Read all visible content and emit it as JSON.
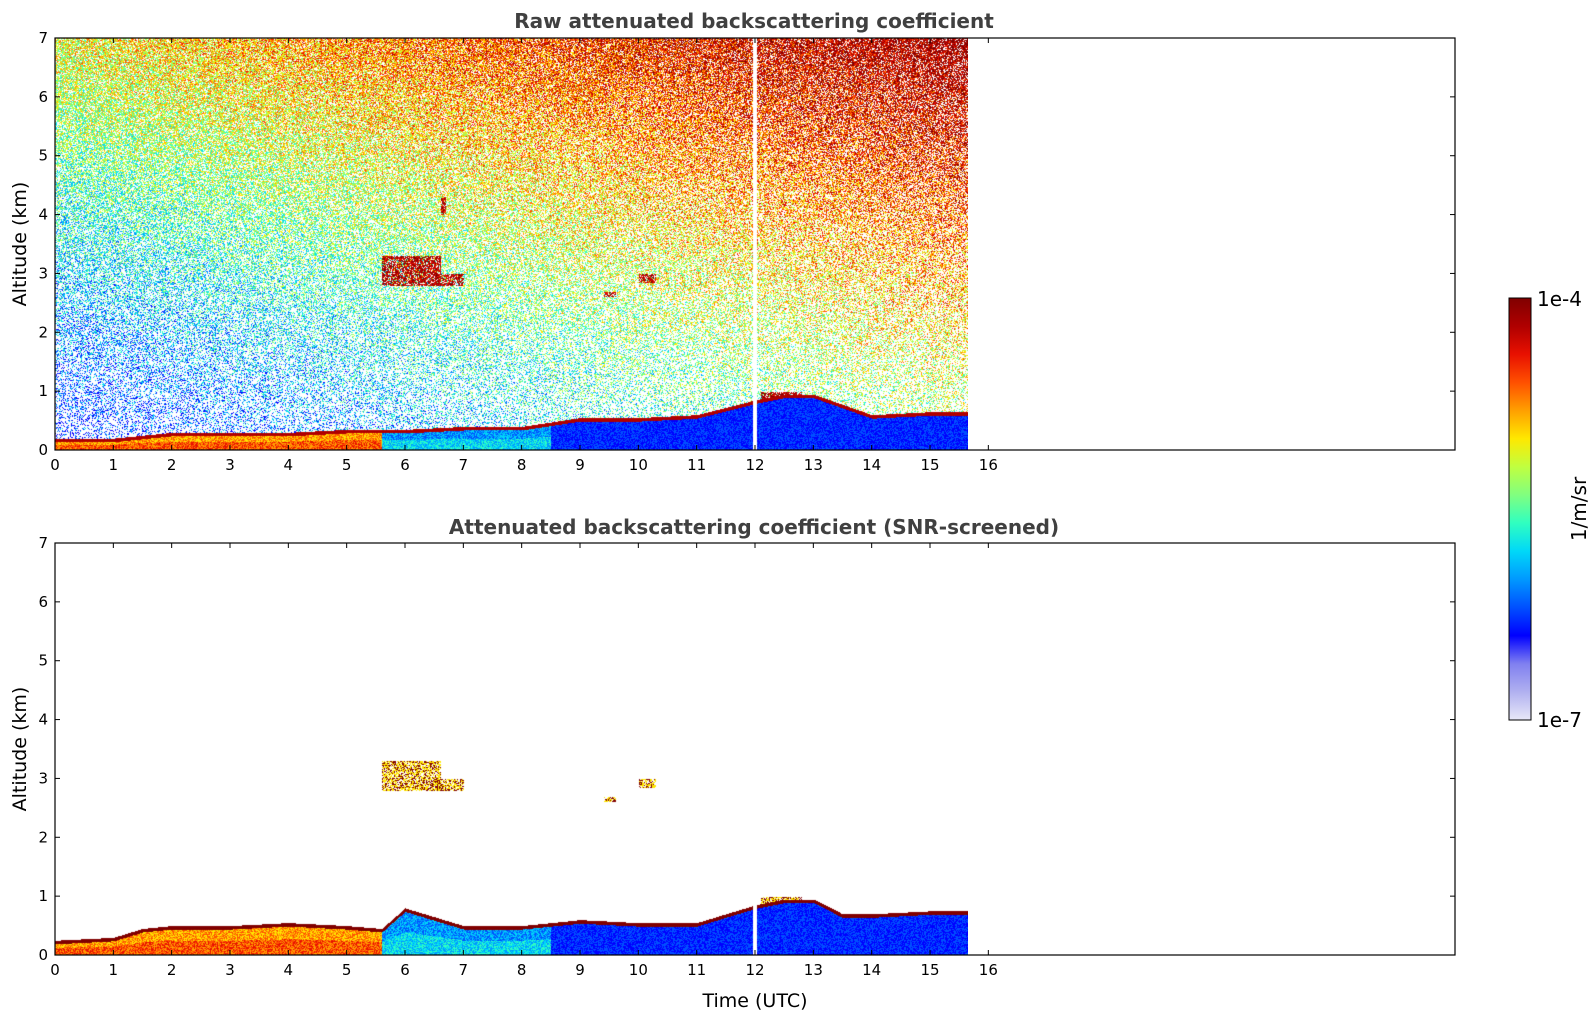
{
  "figure": {
    "colorbar": {
      "max_label": "1e-4",
      "min_label": "1e-7",
      "unit_label": "1/m/sr",
      "colormap": [
        "#e8e8f8",
        "#b0b0f0",
        "#8080f0",
        "#0000ff",
        "#0050ff",
        "#0098ff",
        "#00d8f8",
        "#30ffc0",
        "#80ff80",
        "#c0ff40",
        "#ffe800",
        "#ffa000",
        "#ff5000",
        "#e81000",
        "#b00000",
        "#800000"
      ]
    }
  },
  "chart_data": [
    {
      "type": "heatmap",
      "title": "Raw attenuated backscattering coefficient",
      "xlabel": "",
      "ylabel": "Altitude (km)",
      "xlim": [
        0,
        24
      ],
      "ylim": [
        0,
        7
      ],
      "xticks": [
        "0",
        "1",
        "2",
        "3",
        "4",
        "5",
        "6",
        "7",
        "8",
        "9",
        "10",
        "11",
        "12",
        "13",
        "14",
        "15",
        "16"
      ],
      "yticks": [
        "0",
        "1",
        "2",
        "3",
        "4",
        "5",
        "6",
        "7"
      ],
      "data_x_range": [
        0,
        15.65
      ],
      "scale": "log",
      "value_range": [
        1e-07,
        0.0001
      ],
      "gaps_utc": [
        11.95,
        12.02
      ],
      "boundary_layer_top_km": [
        [
          0,
          0.2
        ],
        [
          1,
          0.2
        ],
        [
          2,
          0.3
        ],
        [
          3,
          0.3
        ],
        [
          4,
          0.3
        ],
        [
          5,
          0.35
        ],
        [
          6,
          0.35
        ],
        [
          7,
          0.4
        ],
        [
          8,
          0.4
        ],
        [
          9,
          0.55
        ],
        [
          10,
          0.55
        ],
        [
          11,
          0.6
        ],
        [
          12,
          0.85
        ],
        [
          12.5,
          0.95
        ],
        [
          13,
          0.95
        ],
        [
          14,
          0.6
        ],
        [
          15,
          0.65
        ],
        [
          15.65,
          0.65
        ]
      ],
      "cloud_features": [
        {
          "x": [
            5.6,
            6.6
          ],
          "y": [
            2.8,
            3.3
          ]
        },
        {
          "x": [
            6.5,
            7.0
          ],
          "y": [
            2.8,
            3.0
          ]
        },
        {
          "x": [
            6.6,
            6.7
          ],
          "y": [
            4.0,
            4.3
          ]
        },
        {
          "x": [
            9.4,
            9.6
          ],
          "y": [
            2.6,
            2.7
          ]
        },
        {
          "x": [
            10.0,
            10.3
          ],
          "y": [
            2.85,
            3.0
          ]
        },
        {
          "x": [
            12.1,
            12.8
          ],
          "y": [
            0.85,
            1.0
          ]
        }
      ]
    },
    {
      "type": "heatmap",
      "title": "Attenuated backscattering coefficient (SNR-screened)",
      "xlabel": "Time (UTC)",
      "ylabel": "Altitude (km)",
      "xlim": [
        0,
        24
      ],
      "ylim": [
        0,
        7
      ],
      "xticks": [
        "0",
        "1",
        "2",
        "3",
        "4",
        "5",
        "6",
        "7",
        "8",
        "9",
        "10",
        "11",
        "12",
        "13",
        "14",
        "15",
        "16"
      ],
      "yticks": [
        "0",
        "1",
        "2",
        "3",
        "4",
        "5",
        "6",
        "7"
      ],
      "data_x_range": [
        0,
        15.65
      ],
      "scale": "log",
      "value_range": [
        1e-07,
        0.0001
      ],
      "gaps_utc": [
        11.95,
        12.02
      ],
      "boundary_layer_top_km": [
        [
          0,
          0.25
        ],
        [
          1,
          0.3
        ],
        [
          1.5,
          0.45
        ],
        [
          2,
          0.5
        ],
        [
          3,
          0.5
        ],
        [
          4,
          0.55
        ],
        [
          5,
          0.5
        ],
        [
          5.6,
          0.45
        ],
        [
          6,
          0.8
        ],
        [
          7,
          0.5
        ],
        [
          8,
          0.5
        ],
        [
          9,
          0.6
        ],
        [
          10,
          0.55
        ],
        [
          11,
          0.55
        ],
        [
          12,
          0.85
        ],
        [
          12.5,
          0.95
        ],
        [
          13,
          0.95
        ],
        [
          13.5,
          0.7
        ],
        [
          14,
          0.7
        ],
        [
          15,
          0.75
        ],
        [
          15.65,
          0.75
        ]
      ],
      "cloud_features": [
        {
          "x": [
            5.6,
            6.6
          ],
          "y": [
            2.8,
            3.3
          ]
        },
        {
          "x": [
            6.5,
            7.0
          ],
          "y": [
            2.8,
            3.0
          ]
        },
        {
          "x": [
            9.4,
            9.6
          ],
          "y": [
            2.6,
            2.7
          ]
        },
        {
          "x": [
            10.0,
            10.3
          ],
          "y": [
            2.85,
            3.0
          ]
        },
        {
          "x": [
            12.1,
            12.8
          ],
          "y": [
            0.85,
            1.0
          ]
        }
      ]
    }
  ]
}
